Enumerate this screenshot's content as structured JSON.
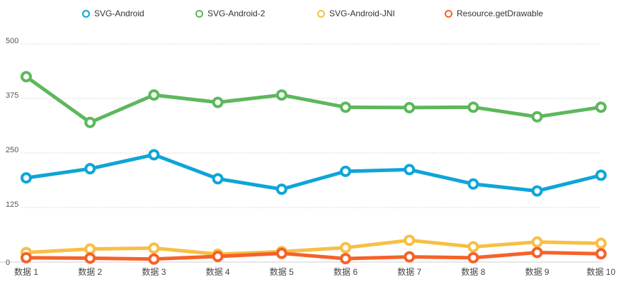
{
  "chart_data": {
    "type": "line",
    "categories": [
      "数据 1",
      "数据 2",
      "数据 3",
      "数据 4",
      "数据 5",
      "数据 6",
      "数据 7",
      "数据 8",
      "数据 9",
      "数据 10"
    ],
    "ylim": [
      0,
      500
    ],
    "yticks": [
      "0",
      "125",
      "250",
      "375",
      "500"
    ],
    "legend_position": "top",
    "grid": "horizontal dashed",
    "series": [
      {
        "name": "SVG-Android",
        "color": "#0ea5d8",
        "values": [
          193,
          214,
          246,
          191,
          167,
          208,
          212,
          179,
          163,
          199
        ]
      },
      {
        "name": "SVG-Android-2",
        "color": "#5cb85c",
        "values": [
          425,
          320,
          383,
          366,
          383,
          355,
          354,
          355,
          333,
          355
        ]
      },
      {
        "name": "SVG-Android-JNI",
        "color": "#f7bf45",
        "values": [
          22,
          30,
          32,
          18,
          24,
          33,
          50,
          35,
          46,
          43
        ]
      },
      {
        "name": "Resource.getDrawable",
        "color": "#f4622a",
        "values": [
          10,
          9,
          7,
          13,
          20,
          8,
          12,
          10,
          22,
          19
        ]
      }
    ]
  }
}
